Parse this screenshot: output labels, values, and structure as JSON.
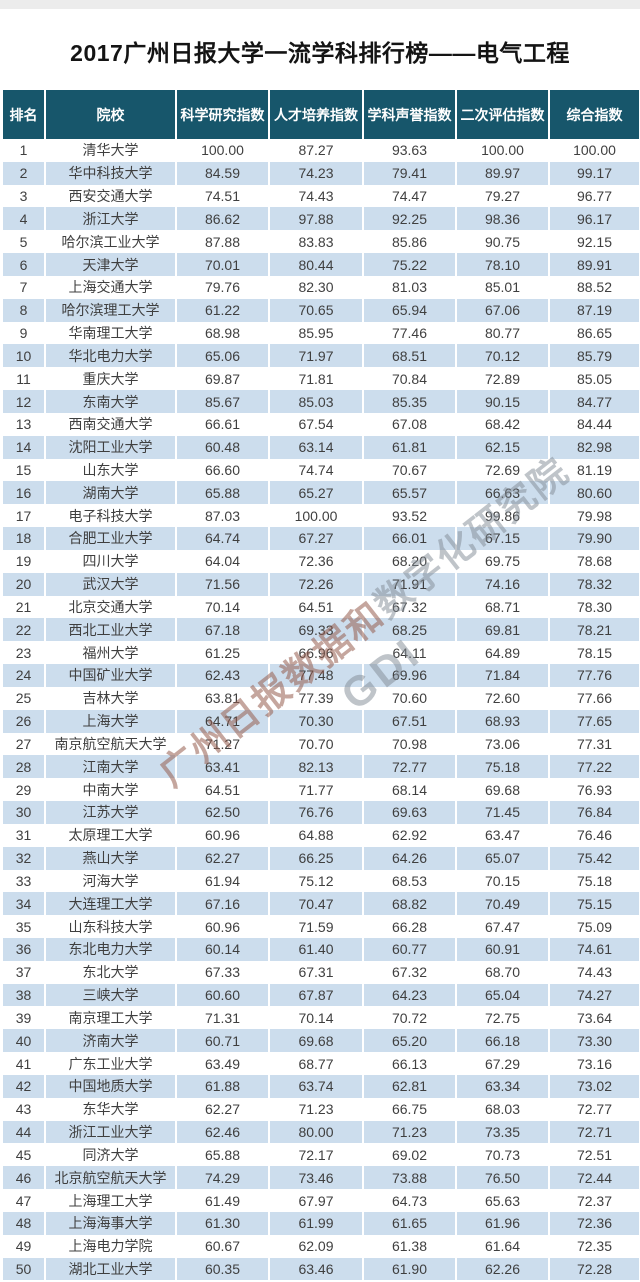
{
  "chart_data": {
    "type": "table",
    "title": "2017广州日报大学一流学科排行榜——电气工程",
    "columns": [
      "排名",
      "院校",
      "科学研究指数",
      "人才培养指数",
      "学科声誉指数",
      "二次评估指数",
      "综合指数"
    ],
    "rows": [
      [
        "1",
        "清华大学",
        "100.00",
        "87.27",
        "93.63",
        "100.00",
        "100.00"
      ],
      [
        "2",
        "华中科技大学",
        "84.59",
        "74.23",
        "79.41",
        "89.97",
        "99.17"
      ],
      [
        "3",
        "西安交通大学",
        "74.51",
        "74.43",
        "74.47",
        "79.27",
        "96.77"
      ],
      [
        "4",
        "浙江大学",
        "86.62",
        "97.88",
        "92.25",
        "98.36",
        "96.17"
      ],
      [
        "5",
        "哈尔滨工业大学",
        "87.88",
        "83.83",
        "85.86",
        "90.75",
        "92.15"
      ],
      [
        "6",
        "天津大学",
        "70.01",
        "80.44",
        "75.22",
        "78.10",
        "89.91"
      ],
      [
        "7",
        "上海交通大学",
        "79.76",
        "82.30",
        "81.03",
        "85.01",
        "88.52"
      ],
      [
        "8",
        "哈尔滨理工大学",
        "61.22",
        "70.65",
        "65.94",
        "67.06",
        "87.19"
      ],
      [
        "9",
        "华南理工大学",
        "68.98",
        "85.95",
        "77.46",
        "80.77",
        "86.65"
      ],
      [
        "10",
        "华北电力大学",
        "65.06",
        "71.97",
        "68.51",
        "70.12",
        "85.79"
      ],
      [
        "11",
        "重庆大学",
        "69.87",
        "71.81",
        "70.84",
        "72.89",
        "85.05"
      ],
      [
        "12",
        "东南大学",
        "85.67",
        "85.03",
        "85.35",
        "90.15",
        "84.77"
      ],
      [
        "13",
        "西南交通大学",
        "66.61",
        "67.54",
        "67.08",
        "68.42",
        "84.44"
      ],
      [
        "14",
        "沈阳工业大学",
        "60.48",
        "63.14",
        "61.81",
        "62.15",
        "82.98"
      ],
      [
        "15",
        "山东大学",
        "66.60",
        "74.74",
        "70.67",
        "72.69",
        "81.19"
      ],
      [
        "16",
        "湖南大学",
        "65.88",
        "65.27",
        "65.57",
        "66.63",
        "80.60"
      ],
      [
        "17",
        "电子科技大学",
        "87.03",
        "100.00",
        "93.52",
        "99.86",
        "79.98"
      ],
      [
        "18",
        "合肥工业大学",
        "64.74",
        "67.27",
        "66.01",
        "67.15",
        "79.90"
      ],
      [
        "19",
        "四川大学",
        "64.04",
        "72.36",
        "68.20",
        "69.75",
        "78.68"
      ],
      [
        "20",
        "武汉大学",
        "71.56",
        "72.26",
        "71.91",
        "74.16",
        "78.32"
      ],
      [
        "21",
        "北京交通大学",
        "70.14",
        "64.51",
        "67.32",
        "68.71",
        "78.30"
      ],
      [
        "22",
        "西北工业大学",
        "67.18",
        "69.33",
        "68.25",
        "69.81",
        "78.21"
      ],
      [
        "23",
        "福州大学",
        "61.25",
        "66.96",
        "64.11",
        "64.89",
        "78.15"
      ],
      [
        "24",
        "中国矿业大学",
        "62.43",
        "77.48",
        "69.96",
        "71.84",
        "77.76"
      ],
      [
        "25",
        "吉林大学",
        "63.81",
        "77.39",
        "70.60",
        "72.60",
        "77.66"
      ],
      [
        "26",
        "上海大学",
        "64.71",
        "70.30",
        "67.51",
        "68.93",
        "77.65"
      ],
      [
        "27",
        "南京航空航天大学",
        "71.27",
        "70.70",
        "70.98",
        "73.06",
        "77.31"
      ],
      [
        "28",
        "江南大学",
        "63.41",
        "82.13",
        "72.77",
        "75.18",
        "77.22"
      ],
      [
        "29",
        "中南大学",
        "64.51",
        "71.77",
        "68.14",
        "69.68",
        "76.93"
      ],
      [
        "30",
        "江苏大学",
        "62.50",
        "76.76",
        "69.63",
        "71.45",
        "76.84"
      ],
      [
        "31",
        "太原理工大学",
        "60.96",
        "64.88",
        "62.92",
        "63.47",
        "76.46"
      ],
      [
        "32",
        "燕山大学",
        "62.27",
        "66.25",
        "64.26",
        "65.07",
        "75.42"
      ],
      [
        "33",
        "河海大学",
        "61.94",
        "75.12",
        "68.53",
        "70.15",
        "75.18"
      ],
      [
        "34",
        "大连理工大学",
        "67.16",
        "70.47",
        "68.82",
        "70.49",
        "75.15"
      ],
      [
        "35",
        "山东科技大学",
        "60.96",
        "71.59",
        "66.28",
        "67.47",
        "75.09"
      ],
      [
        "36",
        "东北电力大学",
        "60.14",
        "61.40",
        "60.77",
        "60.91",
        "74.61"
      ],
      [
        "37",
        "东北大学",
        "67.33",
        "67.31",
        "67.32",
        "68.70",
        "74.43"
      ],
      [
        "38",
        "三峡大学",
        "60.60",
        "67.87",
        "64.23",
        "65.04",
        "74.27"
      ],
      [
        "39",
        "南京理工大学",
        "71.31",
        "70.14",
        "70.72",
        "72.75",
        "73.64"
      ],
      [
        "40",
        "济南大学",
        "60.71",
        "69.68",
        "65.20",
        "66.18",
        "73.30"
      ],
      [
        "41",
        "广东工业大学",
        "63.49",
        "68.77",
        "66.13",
        "67.29",
        "73.16"
      ],
      [
        "42",
        "中国地质大学",
        "61.88",
        "63.74",
        "62.81",
        "63.34",
        "73.02"
      ],
      [
        "43",
        "东华大学",
        "62.27",
        "71.23",
        "66.75",
        "68.03",
        "72.77"
      ],
      [
        "44",
        "浙江工业大学",
        "62.46",
        "80.00",
        "71.23",
        "73.35",
        "72.71"
      ],
      [
        "45",
        "同济大学",
        "65.88",
        "72.17",
        "69.02",
        "70.73",
        "72.51"
      ],
      [
        "46",
        "北京航空航天大学",
        "74.29",
        "73.46",
        "73.88",
        "76.50",
        "72.44"
      ],
      [
        "47",
        "上海理工大学",
        "61.49",
        "67.97",
        "64.73",
        "65.63",
        "72.37"
      ],
      [
        "48",
        "上海海事大学",
        "61.30",
        "61.99",
        "61.65",
        "61.96",
        "72.36"
      ],
      [
        "49",
        "上海电力学院",
        "60.67",
        "62.09",
        "61.38",
        "61.64",
        "72.35"
      ],
      [
        "50",
        "湖北工业大学",
        "60.35",
        "63.46",
        "61.90",
        "62.26",
        "72.28"
      ]
    ]
  },
  "watermark": {
    "part1": "广州日报数据和",
    "part2": "数字化研究院",
    "gdi": "GDI"
  },
  "colors": {
    "header_bg": "#17566b",
    "header_text": "#ffffff",
    "row_alt_bg": "#ccdded",
    "body_text": "#3f3f3f",
    "title_text": "#141414",
    "watermark_red": "rgba(150,92,78,0.55)",
    "watermark_gray": "rgba(128,138,148,0.5)"
  }
}
